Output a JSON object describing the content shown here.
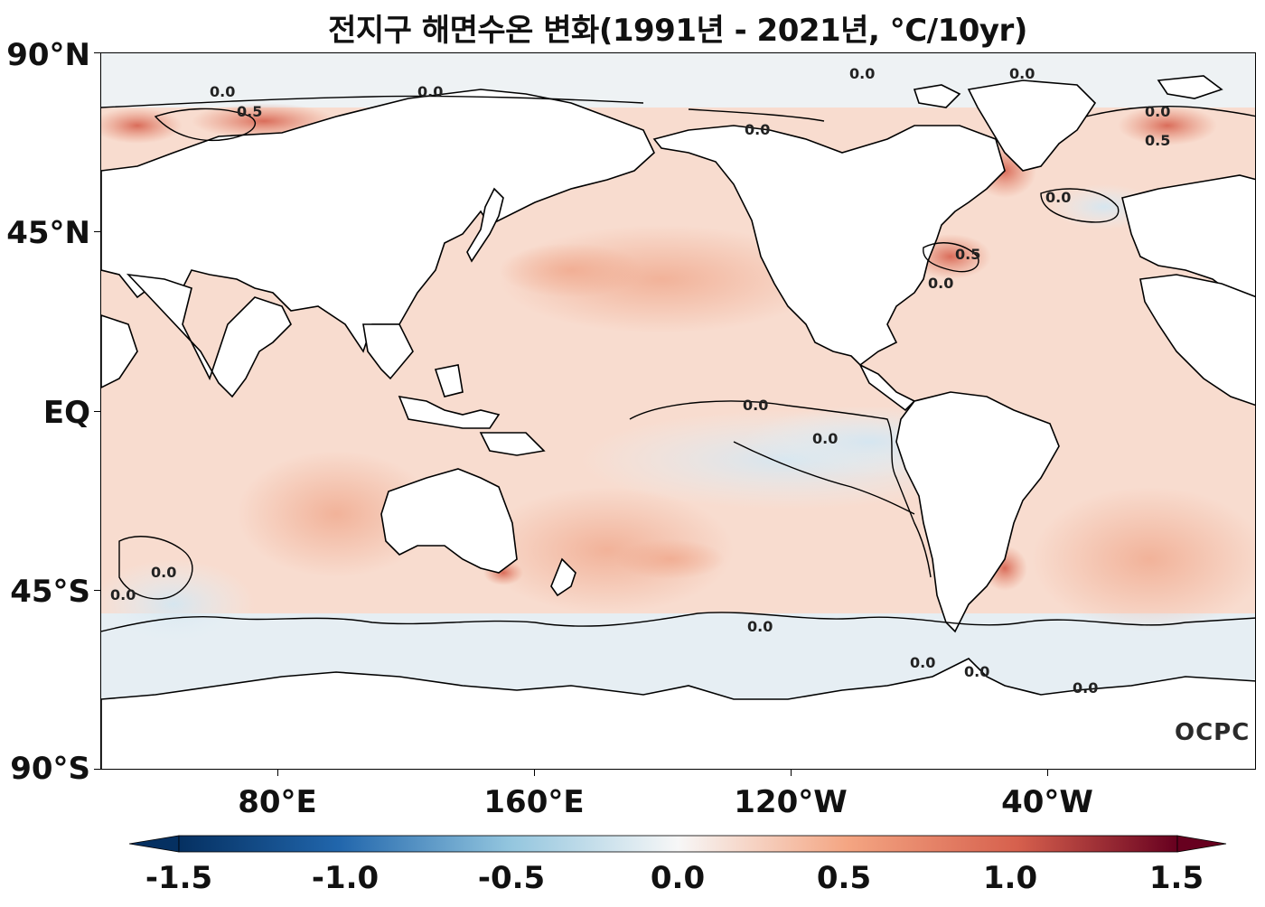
{
  "title": "전지구 해면수온 변화(1991년 - 2021년, °C/10yr)",
  "map": {
    "y_axis_labels": [
      "90°N",
      "45°N",
      "EQ",
      "45°S",
      "90°S"
    ],
    "x_axis_labels": [
      "80°E",
      "160°E",
      "120°W",
      "40°W"
    ],
    "contour_labels": [
      "0.0",
      "0.0",
      "0.5",
      "0.0",
      "0.0",
      "0.0",
      "0.0",
      "0.0",
      "0.5",
      "0.0",
      "0.5",
      "0.0",
      "0.0",
      "0.0",
      "0.0",
      "0.0",
      "0.0",
      "0.0",
      "0.0"
    ],
    "logo_text": "OCPC"
  },
  "colorbar": {
    "min": -1.5,
    "max": 1.5,
    "tick_labels": [
      "-1.5",
      "-1.0",
      "-0.5",
      "0.0",
      "0.5",
      "1.0",
      "1.5"
    ],
    "colors": {
      "strong_negative": "#053061",
      "negative": "#2166ac",
      "weak_negative": "#92c5de",
      "neutral": "#f7f7f7",
      "weak_positive": "#f4a582",
      "positive": "#d6604d",
      "strong_positive": "#67001f"
    }
  },
  "colors": {
    "land": "#ffffff",
    "ocean_warm": "#f9d3c2",
    "ocean_neutral": "#f3f1f0",
    "ocean_cool": "#e1ecf2"
  }
}
